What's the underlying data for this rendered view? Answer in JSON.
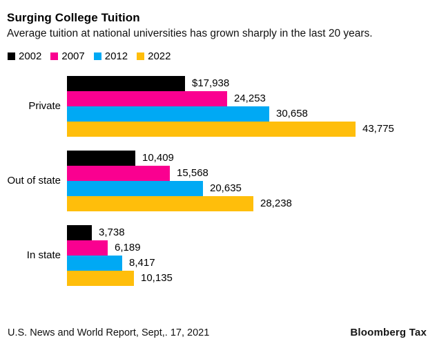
{
  "header": {
    "title": "Surging College Tuition",
    "subtitle": "Average tuition at national universities has grown sharply in the last 20 years."
  },
  "legend": [
    {
      "label": "2002",
      "color": "#000000"
    },
    {
      "label": "2007",
      "color": "#FA0090"
    },
    {
      "label": "2012",
      "color": "#00A9F4"
    },
    {
      "label": "2022",
      "color": "#FFBE0B"
    }
  ],
  "chart_data": {
    "type": "bar",
    "orientation": "horizontal",
    "title": "Surging College Tuition",
    "subtitle": "Average tuition at national universities has grown sharply in the last 20 years.",
    "categories": [
      "Private",
      "Out of state",
      "In state"
    ],
    "series": [
      {
        "name": "2002",
        "color": "#000000",
        "values": [
          17938,
          10409,
          3738
        ],
        "labels": [
          "$17,938",
          "10,409",
          "3,738"
        ]
      },
      {
        "name": "2007",
        "color": "#FA0090",
        "values": [
          24253,
          15568,
          6189
        ],
        "labels": [
          "24,253",
          "15,568",
          "6,189"
        ]
      },
      {
        "name": "2012",
        "color": "#00A9F4",
        "values": [
          30658,
          20635,
          8417
        ],
        "labels": [
          "30,658",
          "20,635",
          "8,417"
        ]
      },
      {
        "name": "2022",
        "color": "#FFBE0B",
        "values": [
          43775,
          28238,
          10135
        ],
        "labels": [
          "43,775",
          "28,238",
          "10,135"
        ]
      }
    ],
    "xlim": [
      0,
      43775
    ],
    "gridlines": false,
    "value_axis_visible": false,
    "legend_position": "top",
    "value_labels": "outside-end"
  },
  "footer": {
    "source": "U.S. News and World Report, Sept,. 17, 2021",
    "brand": "Bloomberg Tax"
  }
}
